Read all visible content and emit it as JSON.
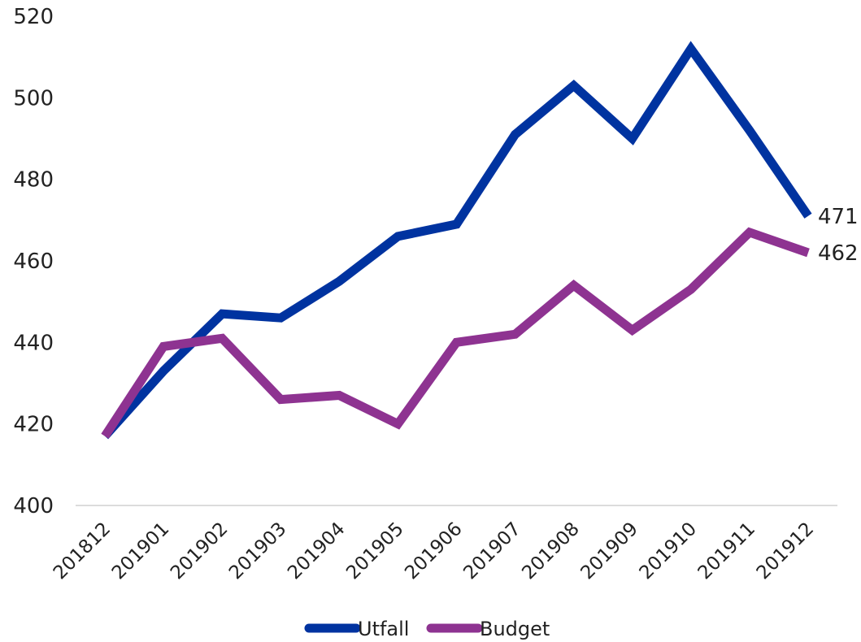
{
  "chart_data": {
    "type": "line",
    "title": "",
    "xlabel": "",
    "ylabel": "",
    "categories": [
      "201812",
      "201901",
      "201902",
      "201903",
      "201904",
      "201905",
      "201906",
      "201907",
      "201908",
      "201909",
      "201910",
      "201911",
      "201912"
    ],
    "ylim": [
      400,
      520
    ],
    "yticks": [
      "400",
      "420",
      "440",
      "460",
      "480",
      "500",
      "520"
    ],
    "grid": false,
    "legend_position": "bottom",
    "series": [
      {
        "name": "Utfall",
        "color": "#0033a0",
        "values": [
          417,
          433,
          447,
          446,
          455,
          466,
          469,
          491,
          503,
          490,
          512,
          492,
          471
        ],
        "end_label": "471"
      },
      {
        "name": "Budget",
        "color": "#8e3391",
        "values": [
          417,
          439,
          441,
          426,
          427,
          420,
          440,
          442,
          454,
          443,
          453,
          467,
          462
        ],
        "end_label": "462"
      }
    ]
  }
}
